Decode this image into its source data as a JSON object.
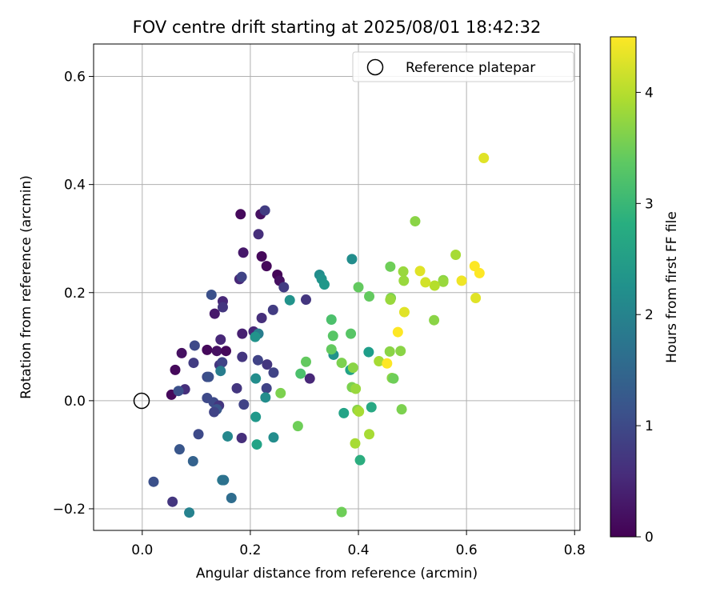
{
  "chart_data": {
    "type": "scatter",
    "title": "FOV centre drift starting at 2025/08/01 18:42:32",
    "xlabel": "Angular distance from reference (arcmin)",
    "ylabel": "Rotation from reference (arcmin)",
    "xlim": [
      -0.09,
      0.81
    ],
    "ylim": [
      -0.24,
      0.66
    ],
    "xticks": [
      0.0,
      0.2,
      0.4,
      0.6,
      0.8
    ],
    "xtick_labels": [
      "0.0",
      "0.2",
      "0.4",
      "0.6",
      "0.8"
    ],
    "yticks": [
      -0.2,
      0.0,
      0.2,
      0.4,
      0.6
    ],
    "ytick_labels": [
      "−0.2",
      "0.0",
      "0.2",
      "0.4",
      "0.6"
    ],
    "grid": true,
    "legend": {
      "location": "top-right",
      "entries": [
        {
          "label": "Reference platepar",
          "marker": "open-circle",
          "x": 0.0,
          "y": 0.0
        }
      ]
    },
    "colorbar": {
      "label": "Hours from first FF file",
      "colormap": "viridis",
      "range": [
        0,
        4.5
      ],
      "ticks": [
        0,
        1,
        2,
        3,
        4
      ],
      "tick_labels": [
        "0",
        "1",
        "2",
        "3",
        "4"
      ]
    },
    "points": [
      {
        "x": 0.054,
        "y": 0.011,
        "h": 0.1
      },
      {
        "x": 0.061,
        "y": 0.057,
        "h": 0.1
      },
      {
        "x": 0.073,
        "y": 0.088,
        "h": 0.2
      },
      {
        "x": 0.12,
        "y": 0.094,
        "h": 0.1
      },
      {
        "x": 0.138,
        "y": 0.092,
        "h": 0.2
      },
      {
        "x": 0.155,
        "y": 0.092,
        "h": 0.1
      },
      {
        "x": 0.182,
        "y": 0.345,
        "h": 0.1
      },
      {
        "x": 0.219,
        "y": 0.345,
        "h": 0.2
      },
      {
        "x": 0.221,
        "y": 0.267,
        "h": 0.1
      },
      {
        "x": 0.25,
        "y": 0.233,
        "h": 0.05
      },
      {
        "x": 0.254,
        "y": 0.222,
        "h": 0.2
      },
      {
        "x": 0.23,
        "y": 0.249,
        "h": 0.1
      },
      {
        "x": 0.187,
        "y": 0.274,
        "h": 0.3
      },
      {
        "x": 0.227,
        "y": 0.352,
        "h": 0.8
      },
      {
        "x": 0.215,
        "y": 0.308,
        "h": 0.6
      },
      {
        "x": 0.18,
        "y": 0.225,
        "h": 0.5
      },
      {
        "x": 0.184,
        "y": 0.229,
        "h": 0.9
      },
      {
        "x": 0.262,
        "y": 0.21,
        "h": 0.8
      },
      {
        "x": 0.128,
        "y": 0.196,
        "h": 1.1
      },
      {
        "x": 0.149,
        "y": 0.184,
        "h": 0.5
      },
      {
        "x": 0.149,
        "y": 0.173,
        "h": 0.7
      },
      {
        "x": 0.134,
        "y": 0.161,
        "h": 0.3
      },
      {
        "x": 0.303,
        "y": 0.187,
        "h": 0.7
      },
      {
        "x": 0.242,
        "y": 0.168,
        "h": 0.8
      },
      {
        "x": 0.221,
        "y": 0.153,
        "h": 0.6
      },
      {
        "x": 0.185,
        "y": 0.124,
        "h": 0.4
      },
      {
        "x": 0.206,
        "y": 0.128,
        "h": 0.5
      },
      {
        "x": 0.145,
        "y": 0.113,
        "h": 0.5
      },
      {
        "x": 0.097,
        "y": 0.102,
        "h": 1.0
      },
      {
        "x": 0.095,
        "y": 0.07,
        "h": 0.8
      },
      {
        "x": 0.185,
        "y": 0.081,
        "h": 0.7
      },
      {
        "x": 0.214,
        "y": 0.075,
        "h": 0.9
      },
      {
        "x": 0.231,
        "y": 0.067,
        "h": 0.7
      },
      {
        "x": 0.243,
        "y": 0.052,
        "h": 0.9
      },
      {
        "x": 0.143,
        "y": 0.066,
        "h": 0.7
      },
      {
        "x": 0.148,
        "y": 0.071,
        "h": 0.9
      },
      {
        "x": 0.12,
        "y": 0.044,
        "h": 1.0
      },
      {
        "x": 0.123,
        "y": 0.044,
        "h": 1.1
      },
      {
        "x": 0.079,
        "y": 0.021,
        "h": 0.6
      },
      {
        "x": 0.067,
        "y": 0.018,
        "h": 1.1
      },
      {
        "x": 0.175,
        "y": 0.023,
        "h": 0.7
      },
      {
        "x": 0.23,
        "y": 0.023,
        "h": 0.9
      },
      {
        "x": 0.31,
        "y": 0.041,
        "h": 0.5
      },
      {
        "x": 0.12,
        "y": 0.005,
        "h": 1.0
      },
      {
        "x": 0.132,
        "y": -0.003,
        "h": 1.0
      },
      {
        "x": 0.142,
        "y": -0.009,
        "h": 0.7
      },
      {
        "x": 0.138,
        "y": -0.016,
        "h": 1.2
      },
      {
        "x": 0.133,
        "y": -0.021,
        "h": 0.9
      },
      {
        "x": 0.188,
        "y": -0.007,
        "h": 0.9
      },
      {
        "x": 0.104,
        "y": -0.062,
        "h": 1.0
      },
      {
        "x": 0.069,
        "y": -0.09,
        "h": 1.2
      },
      {
        "x": 0.184,
        "y": -0.069,
        "h": 0.6
      },
      {
        "x": 0.094,
        "y": -0.112,
        "h": 1.4
      },
      {
        "x": 0.021,
        "y": -0.15,
        "h": 1.1
      },
      {
        "x": 0.056,
        "y": -0.187,
        "h": 0.7
      },
      {
        "x": 0.148,
        "y": -0.147,
        "h": 1.8
      },
      {
        "x": 0.151,
        "y": -0.147,
        "h": 1.7
      },
      {
        "x": 0.165,
        "y": -0.18,
        "h": 1.6
      },
      {
        "x": 0.087,
        "y": -0.207,
        "h": 2.0
      },
      {
        "x": 0.145,
        "y": 0.055,
        "h": 1.9
      },
      {
        "x": 0.215,
        "y": 0.124,
        "h": 1.9
      },
      {
        "x": 0.209,
        "y": 0.118,
        "h": 2.3
      },
      {
        "x": 0.21,
        "y": 0.041,
        "h": 2.2
      },
      {
        "x": 0.228,
        "y": 0.006,
        "h": 2.2
      },
      {
        "x": 0.158,
        "y": -0.066,
        "h": 2.1
      },
      {
        "x": 0.21,
        "y": -0.03,
        "h": 2.4
      },
      {
        "x": 0.212,
        "y": -0.081,
        "h": 2.6
      },
      {
        "x": 0.243,
        "y": -0.068,
        "h": 2.2
      },
      {
        "x": 0.273,
        "y": 0.186,
        "h": 2.3
      },
      {
        "x": 0.328,
        "y": 0.233,
        "h": 2.2
      },
      {
        "x": 0.332,
        "y": 0.225,
        "h": 2.3
      },
      {
        "x": 0.337,
        "y": 0.215,
        "h": 2.4
      },
      {
        "x": 0.388,
        "y": 0.262,
        "h": 2.2
      },
      {
        "x": 0.354,
        "y": 0.085,
        "h": 2.3
      },
      {
        "x": 0.385,
        "y": 0.057,
        "h": 2.6
      },
      {
        "x": 0.419,
        "y": 0.09,
        "h": 2.5
      },
      {
        "x": 0.373,
        "y": -0.023,
        "h": 2.6
      },
      {
        "x": 0.424,
        "y": -0.012,
        "h": 2.7
      },
      {
        "x": 0.403,
        "y": -0.11,
        "h": 2.8
      },
      {
        "x": 0.256,
        "y": 0.014,
        "h": 3.6
      },
      {
        "x": 0.293,
        "y": 0.05,
        "h": 3.2
      },
      {
        "x": 0.303,
        "y": 0.072,
        "h": 3.4
      },
      {
        "x": 0.288,
        "y": -0.047,
        "h": 3.5
      },
      {
        "x": 0.35,
        "y": 0.15,
        "h": 3.2
      },
      {
        "x": 0.353,
        "y": 0.12,
        "h": 3.3
      },
      {
        "x": 0.35,
        "y": 0.095,
        "h": 3.4
      },
      {
        "x": 0.386,
        "y": 0.124,
        "h": 3.3
      },
      {
        "x": 0.369,
        "y": 0.07,
        "h": 3.6
      },
      {
        "x": 0.39,
        "y": 0.061,
        "h": 3.7
      },
      {
        "x": 0.388,
        "y": 0.025,
        "h": 3.6
      },
      {
        "x": 0.395,
        "y": 0.022,
        "h": 3.8
      },
      {
        "x": 0.4,
        "y": 0.21,
        "h": 3.4
      },
      {
        "x": 0.42,
        "y": 0.193,
        "h": 3.4
      },
      {
        "x": 0.398,
        "y": -0.017,
        "h": 3.7
      },
      {
        "x": 0.401,
        "y": -0.02,
        "h": 3.9
      },
      {
        "x": 0.394,
        "y": -0.079,
        "h": 3.9
      },
      {
        "x": 0.42,
        "y": -0.062,
        "h": 3.9
      },
      {
        "x": 0.369,
        "y": -0.206,
        "h": 3.5
      },
      {
        "x": 0.438,
        "y": 0.073,
        "h": 3.9
      },
      {
        "x": 0.458,
        "y": 0.091,
        "h": 3.7
      },
      {
        "x": 0.478,
        "y": 0.092,
        "h": 3.7
      },
      {
        "x": 0.462,
        "y": 0.042,
        "h": 3.7
      },
      {
        "x": 0.465,
        "y": 0.041,
        "h": 3.5
      },
      {
        "x": 0.48,
        "y": -0.016,
        "h": 3.6
      },
      {
        "x": 0.459,
        "y": 0.248,
        "h": 3.5
      },
      {
        "x": 0.46,
        "y": 0.19,
        "h": 3.6
      },
      {
        "x": 0.459,
        "y": 0.187,
        "h": 3.8
      },
      {
        "x": 0.483,
        "y": 0.239,
        "h": 3.8
      },
      {
        "x": 0.484,
        "y": 0.222,
        "h": 3.8
      },
      {
        "x": 0.505,
        "y": 0.332,
        "h": 3.7
      },
      {
        "x": 0.54,
        "y": 0.149,
        "h": 3.7
      },
      {
        "x": 0.557,
        "y": 0.223,
        "h": 3.7
      },
      {
        "x": 0.557,
        "y": 0.22,
        "h": 3.8
      },
      {
        "x": 0.541,
        "y": 0.213,
        "h": 4.0
      },
      {
        "x": 0.58,
        "y": 0.27,
        "h": 3.9
      },
      {
        "x": 0.524,
        "y": 0.219,
        "h": 4.2
      },
      {
        "x": 0.514,
        "y": 0.24,
        "h": 4.3
      },
      {
        "x": 0.485,
        "y": 0.164,
        "h": 4.3
      },
      {
        "x": 0.473,
        "y": 0.127,
        "h": 4.5
      },
      {
        "x": 0.453,
        "y": 0.069,
        "h": 4.5
      },
      {
        "x": 0.591,
        "y": 0.222,
        "h": 4.4
      },
      {
        "x": 0.617,
        "y": 0.19,
        "h": 4.3
      },
      {
        "x": 0.615,
        "y": 0.249,
        "h": 4.5
      },
      {
        "x": 0.624,
        "y": 0.236,
        "h": 4.5
      },
      {
        "x": 0.632,
        "y": 0.449,
        "h": 4.3
      }
    ]
  }
}
